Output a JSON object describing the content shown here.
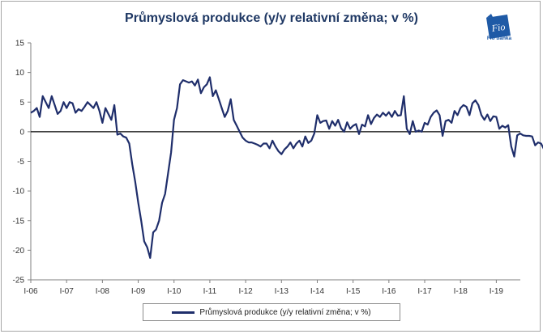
{
  "colors": {
    "series": "#1f2e6b",
    "title": "#1f3864",
    "logo": "#1f5aa6"
  },
  "logo": {
    "mark": "Fio",
    "text": "Fio banka",
    "icon": "fio-flag-icon"
  },
  "chart_data": {
    "type": "line",
    "title": "Průmyslová produkce (y/y relativní změna; v %)",
    "xlabel": "",
    "ylabel": "",
    "ylim": [
      -25,
      15
    ],
    "yticks": [
      -25,
      -20,
      -15,
      -10,
      -5,
      0,
      5,
      10,
      15
    ],
    "xlim": [
      2006.0,
      2019.67
    ],
    "xticks": [
      {
        "label": "I-06",
        "x": 2006
      },
      {
        "label": "I-07",
        "x": 2007
      },
      {
        "label": "I-08",
        "x": 2008
      },
      {
        "label": "I-09",
        "x": 2009
      },
      {
        "label": "I-10",
        "x": 2010
      },
      {
        "label": "I-11",
        "x": 2011
      },
      {
        "label": "I-12",
        "x": 2012
      },
      {
        "label": "I-13",
        "x": 2013
      },
      {
        "label": "I-14",
        "x": 2014
      },
      {
        "label": "I-15",
        "x": 2015
      },
      {
        "label": "I-16",
        "x": 2016
      },
      {
        "label": "I-17",
        "x": 2017
      },
      {
        "label": "I-18",
        "x": 2018
      },
      {
        "label": "I-19",
        "x": 2019
      }
    ],
    "grid": "horizontal",
    "legend_position": "bottom",
    "series": [
      {
        "name": "Průmyslová produkce (y/y relativní změna; v %)",
        "start": "2006-01",
        "step": "month",
        "values": [
          3.2,
          3.5,
          4.0,
          2.5,
          6.0,
          5.0,
          4.0,
          6.0,
          4.5,
          3.0,
          3.5,
          5.0,
          4.0,
          5.0,
          4.8,
          3.2,
          3.8,
          3.5,
          4.2,
          5.0,
          4.5,
          4.0,
          5.0,
          3.5,
          1.5,
          4.0,
          3.0,
          2.0,
          4.5,
          -0.5,
          -0.3,
          -0.8,
          -1.0,
          -2.0,
          -5.5,
          -8.5,
          -12.0,
          -15.0,
          -18.5,
          -19.5,
          -21.3,
          -17.0,
          -16.5,
          -15.0,
          -12.0,
          -10.5,
          -7.0,
          -3.5,
          2.0,
          4.0,
          8.0,
          8.7,
          8.5,
          8.3,
          8.5,
          7.8,
          8.8,
          6.5,
          7.5,
          8.0,
          9.2,
          6.0,
          7.0,
          5.5,
          4.0,
          2.5,
          3.5,
          5.5,
          2.0,
          1.0,
          0.0,
          -1.0,
          -1.5,
          -1.8,
          -1.8,
          -2.0,
          -2.2,
          -2.5,
          -2.0,
          -2.0,
          -2.8,
          -1.5,
          -2.5,
          -3.3,
          -3.8,
          -3.0,
          -2.5,
          -1.8,
          -2.8,
          -2.0,
          -1.5,
          -2.5,
          -0.8,
          -1.9,
          -1.5,
          -0.3,
          2.8,
          1.5,
          1.8,
          1.9,
          0.5,
          1.8,
          1.0,
          2.0,
          0.6,
          0.0,
          1.6,
          0.5,
          1.0,
          1.3,
          -0.4,
          1.2,
          0.9,
          2.8,
          1.3,
          2.3,
          2.9,
          2.5,
          3.2,
          2.7,
          3.3,
          2.5,
          3.5,
          2.7,
          2.8,
          6.0,
          0.5,
          -0.4,
          1.8,
          0.0,
          0.2,
          0.0,
          1.5,
          1.2,
          2.5,
          3.2,
          3.6,
          2.8,
          -0.7,
          1.8,
          2.0,
          1.5,
          3.5,
          2.8,
          4.0,
          4.5,
          4.2,
          2.8,
          4.8,
          5.3,
          4.5,
          2.8,
          2.0,
          2.9,
          1.8,
          2.6,
          2.5,
          0.5,
          1.0,
          0.7,
          1.1,
          -2.5,
          -4.2,
          -0.6,
          -0.3,
          -0.6,
          -0.7,
          -0.7,
          -0.8,
          -2.3,
          -1.8,
          -2.0,
          -3.0
        ]
      }
    ]
  }
}
